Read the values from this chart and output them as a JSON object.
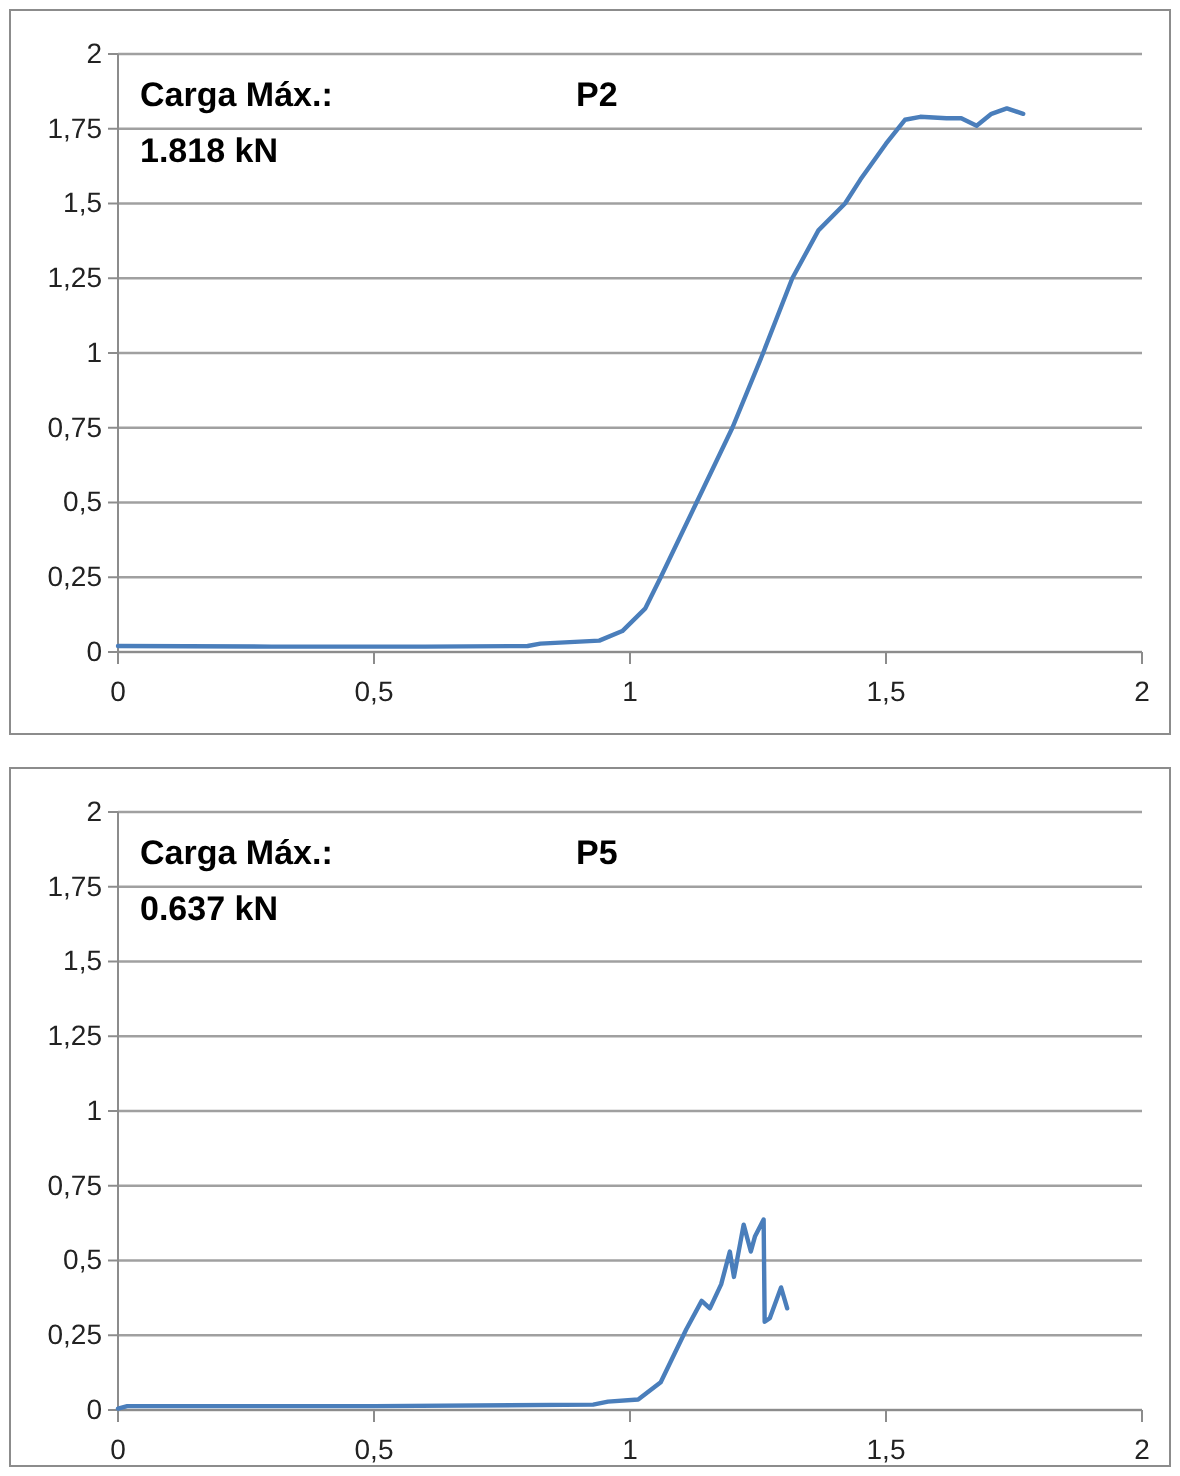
{
  "chart_data": [
    {
      "type": "line",
      "title": "P2",
      "annotations": [
        "Carga Máx.:",
        "1.818 kN"
      ],
      "xlim": [
        0,
        2
      ],
      "xticks": [
        {
          "value": 0,
          "label": "0"
        },
        {
          "value": 0.5,
          "label": "0,5"
        },
        {
          "value": 1,
          "label": "1"
        },
        {
          "value": 1.5,
          "label": "1,5"
        },
        {
          "value": 2,
          "label": "2"
        }
      ],
      "ylim": [
        0,
        2
      ],
      "yticks": [
        {
          "value": 0,
          "label": "0"
        },
        {
          "value": 0.25,
          "label": "0,25"
        },
        {
          "value": 0.5,
          "label": "0,5"
        },
        {
          "value": 0.75,
          "label": "0,75"
        },
        {
          "value": 1,
          "label": "1"
        },
        {
          "value": 1.25,
          "label": "1,25"
        },
        {
          "value": 1.5,
          "label": "1,5"
        },
        {
          "value": 1.75,
          "label": "1,75"
        },
        {
          "value": 2,
          "label": "2"
        }
      ],
      "grid": "y",
      "series": [
        {
          "color": "#4a7ebb",
          "x": [
            0,
            0.3,
            0.6,
            0.8,
            0.825,
            0.94,
            0.985,
            1.03,
            1.06,
            1.13,
            1.2,
            1.26,
            1.317,
            1.368,
            1.42,
            1.45,
            1.5,
            1.537,
            1.567,
            1.618,
            1.647,
            1.677,
            1.706,
            1.736,
            1.768
          ],
          "values": [
            0.02,
            0.018,
            0.018,
            0.02,
            0.028,
            0.038,
            0.07,
            0.146,
            0.25,
            0.5,
            0.75,
            1.0,
            1.25,
            1.41,
            1.5,
            1.58,
            1.7,
            1.78,
            1.79,
            1.785,
            1.785,
            1.76,
            1.8,
            1.818,
            1.8
          ]
        }
      ]
    },
    {
      "type": "line",
      "title": "P5",
      "annotations": [
        "Carga Máx.:",
        "0.637 kN"
      ],
      "xlim": [
        0,
        2
      ],
      "xticks": [
        {
          "value": 0,
          "label": "0"
        },
        {
          "value": 0.5,
          "label": "0,5"
        },
        {
          "value": 1,
          "label": "1"
        },
        {
          "value": 1.5,
          "label": "1,5"
        },
        {
          "value": 2,
          "label": "2"
        }
      ],
      "ylim": [
        0,
        2
      ],
      "yticks": [
        {
          "value": 0,
          "label": "0"
        },
        {
          "value": 0.25,
          "label": "0,25"
        },
        {
          "value": 0.5,
          "label": "0,5"
        },
        {
          "value": 0.75,
          "label": "0,75"
        },
        {
          "value": 1,
          "label": "1"
        },
        {
          "value": 1.25,
          "label": "1,25"
        },
        {
          "value": 1.5,
          "label": "1,5"
        },
        {
          "value": 1.75,
          "label": "1,75"
        },
        {
          "value": 2,
          "label": "2"
        }
      ],
      "grid": "y",
      "series": [
        {
          "color": "#4a7ebb",
          "x": [
            0,
            0.018,
            0.5,
            0.928,
            0.957,
            1.016,
            1.06,
            1.11,
            1.14,
            1.156,
            1.178,
            1.195,
            1.203,
            1.222,
            1.236,
            1.244,
            1.261,
            1.263,
            1.273,
            1.295,
            1.307
          ],
          "values": [
            0.005,
            0.013,
            0.013,
            0.018,
            0.028,
            0.035,
            0.093,
            0.27,
            0.365,
            0.34,
            0.42,
            0.53,
            0.445,
            0.62,
            0.53,
            0.58,
            0.637,
            0.295,
            0.307,
            0.41,
            0.34
          ]
        }
      ]
    }
  ]
}
